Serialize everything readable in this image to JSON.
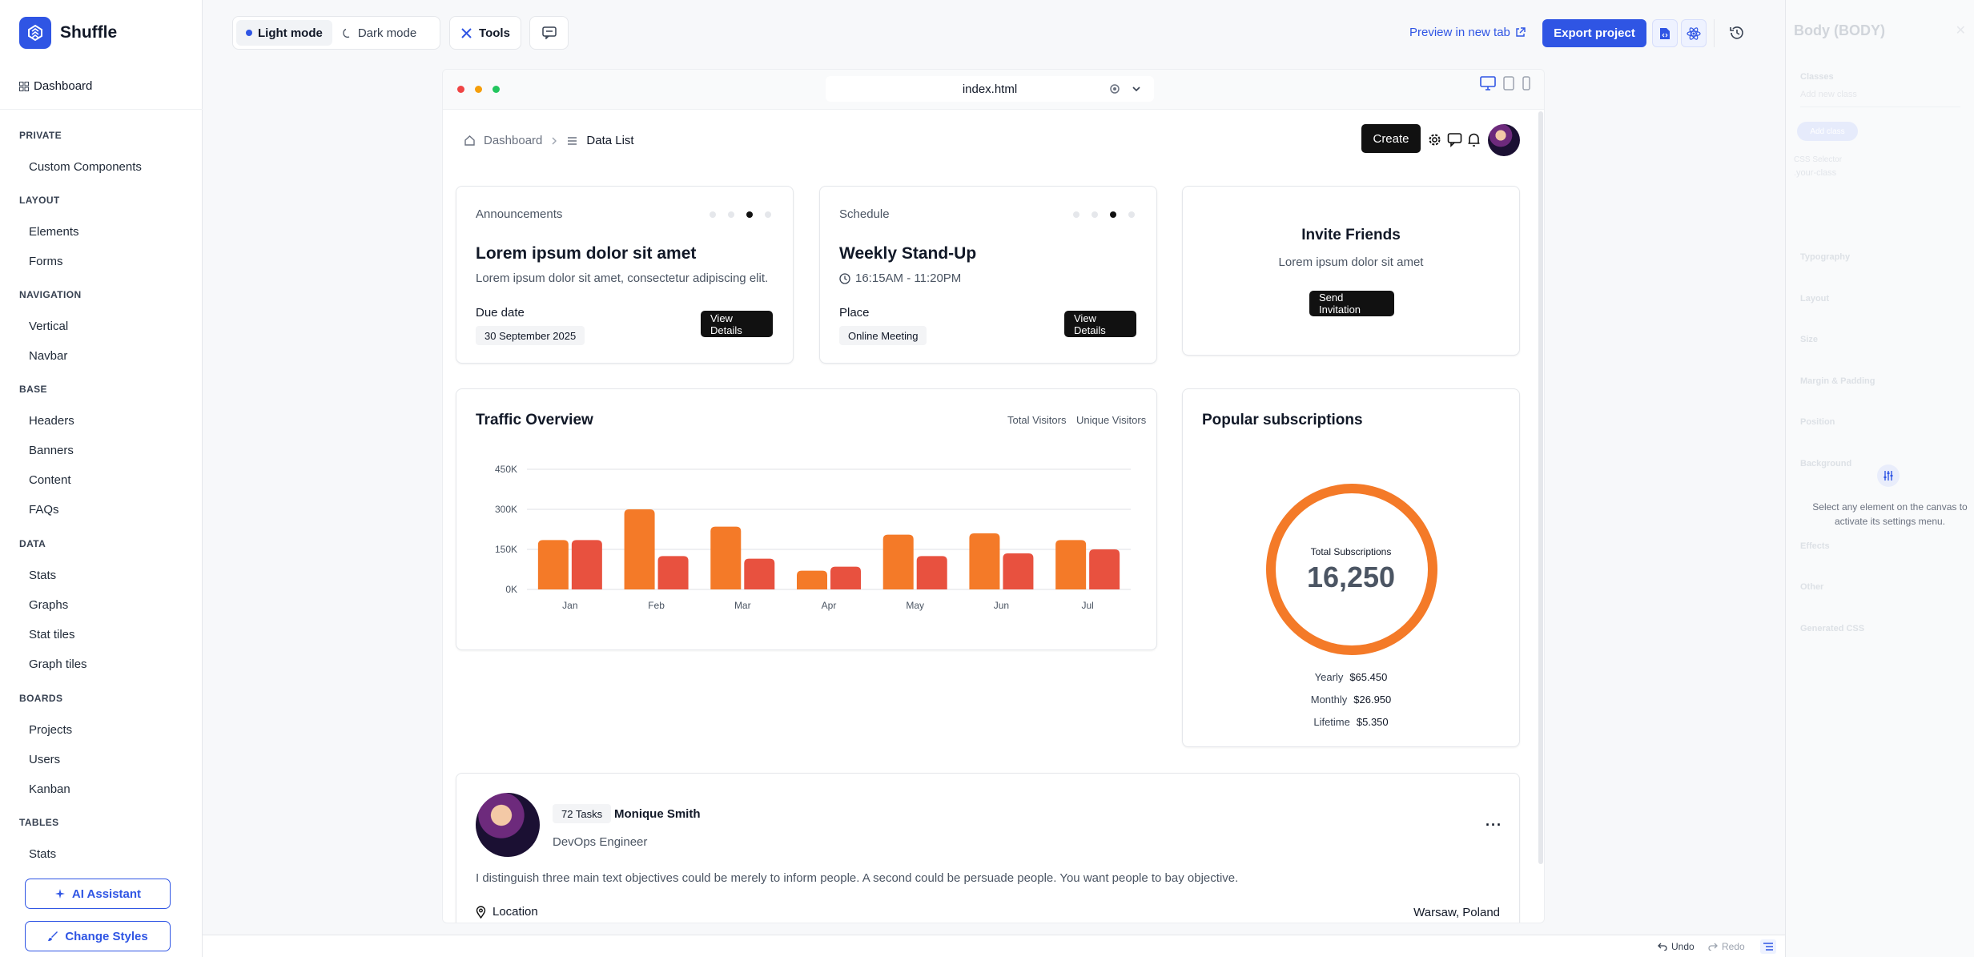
{
  "app": {
    "name": "Shuffle"
  },
  "sidebar": {
    "dashboard": "Dashboard",
    "groups": [
      {
        "title": "PRIVATE",
        "items": [
          "Custom Components"
        ]
      },
      {
        "title": "LAYOUT",
        "items": [
          "Elements",
          "Forms"
        ]
      },
      {
        "title": "NAVIGATION",
        "items": [
          "Vertical",
          "Navbar"
        ]
      },
      {
        "title": "BASE",
        "items": [
          "Headers",
          "Banners",
          "Content",
          "FAQs"
        ]
      },
      {
        "title": "DATA",
        "items": [
          "Stats",
          "Graphs",
          "Stat tiles",
          "Graph tiles"
        ]
      },
      {
        "title": "BOARDS",
        "items": [
          "Projects",
          "Users",
          "Kanban"
        ]
      },
      {
        "title": "TABLES",
        "items": [
          "Stats"
        ]
      }
    ],
    "ai_assistant": "AI Assistant",
    "change_styles": "Change Styles"
  },
  "toolbar": {
    "light_mode": "Light mode",
    "dark_mode": "Dark mode",
    "tools": "Tools",
    "preview": "Preview in new tab",
    "export": "Export project"
  },
  "canvas": {
    "url": "index.html",
    "breadcrumb": {
      "home": "Dashboard",
      "current": "Data List"
    },
    "create": "Create",
    "announcements": {
      "label": "Announcements",
      "title": "Lorem ipsum dolor sit amet",
      "text": "Lorem ipsum dolor sit amet, consectetur adipiscing elit.",
      "due_label": "Due date",
      "due_value": "30 September 2025",
      "button": "View Details"
    },
    "schedule": {
      "label": "Schedule",
      "title": "Weekly Stand-Up",
      "time": "16:15AM - 11:20PM",
      "place_label": "Place",
      "place_value": "Online Meeting",
      "button": "View Details"
    },
    "invite": {
      "title": "Invite Friends",
      "text": "Lorem ipsum dolor sit amet",
      "button": "Send Invitation"
    },
    "traffic": {
      "title": "Traffic Overview",
      "legend_total": "Total Visitors",
      "legend_unique": "Unique Visitors"
    },
    "subscriptions": {
      "title": "Popular subscriptions",
      "center_label": "Total Subscriptions",
      "center_value": "16,250",
      "rows": [
        {
          "label": "Yearly",
          "value": "$65.450"
        },
        {
          "label": "Monthly",
          "value": "$26.950"
        },
        {
          "label": "Lifetime",
          "value": "$5.350"
        }
      ]
    },
    "profile": {
      "tasks": "72 Tasks",
      "name": "Monique Smith",
      "role": "DevOps Engineer",
      "bio": "I distinguish three main text objectives could be merely to inform people. A second could be persuade people. You want people to bay objective.",
      "location_label": "Location",
      "location_value": "Warsaw, Poland"
    }
  },
  "right_panel": {
    "title": "Body (BODY)",
    "classes_label": "Classes",
    "add_placeholder": "Add new class",
    "add_button": "Add class",
    "css_selector": "CSS Selector",
    "selector_value": ".your-class",
    "sections": [
      "Typography",
      "Layout",
      "Size",
      "Margin & Padding",
      "Position",
      "Background",
      "Effects",
      "Other",
      "Generated CSS"
    ],
    "hint": "Select any element on the canvas to activate its settings menu."
  },
  "bottombar": {
    "undo": "Undo",
    "redo": "Redo"
  },
  "colors": {
    "accent": "#2f55e4",
    "bar_total": "#f47a28",
    "bar_unique": "#e8513f",
    "donut": "#f47a28"
  },
  "chart_data": {
    "type": "bar",
    "categories": [
      "Jan",
      "Feb",
      "Mar",
      "Apr",
      "May",
      "Jun",
      "Jul"
    ],
    "series": [
      {
        "name": "Total Visitors",
        "values": [
          185000,
          300000,
          235000,
          70000,
          205000,
          210000,
          185000
        ]
      },
      {
        "name": "Unique Visitors",
        "values": [
          185000,
          125000,
          115000,
          85000,
          125000,
          135000,
          150000
        ]
      }
    ],
    "yticks": [
      "0K",
      "150K",
      "300K",
      "450K"
    ],
    "ylim": [
      0,
      450000
    ],
    "legend": "top-right",
    "grid": true
  }
}
